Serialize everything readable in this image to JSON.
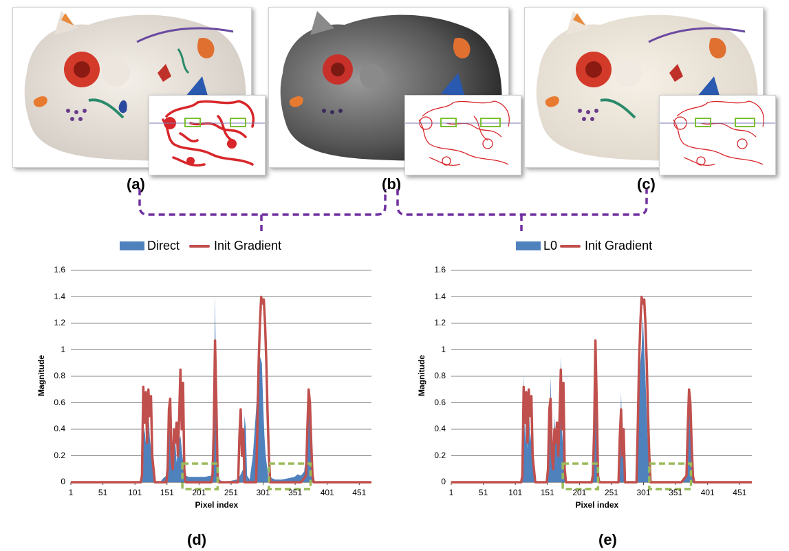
{
  "panels": {
    "a": "(a)",
    "b": "(b)",
    "c": "(c)",
    "d": "(d)",
    "e": "(e)"
  },
  "colors": {
    "bar": "#4f81bd",
    "line": "#c0504d",
    "highlight_box": "#9bbb59",
    "bracket": "#7030a0",
    "grid": "#868686"
  },
  "icons": [
    "cat-figurine-image",
    "edge-map-image"
  ],
  "chart_data": [
    {
      "type": "area",
      "legend_placement": "top",
      "xlabel": "Pixel index",
      "ylabel": "Magnitude",
      "ylim": [
        0,
        1.6
      ],
      "xlim": [
        1,
        470
      ],
      "yticks": [
        "0",
        "0.2",
        "0.4",
        "0.6",
        "0.8",
        "1",
        "1.2",
        "1.4",
        "1.6"
      ],
      "xticks": [
        "1",
        "51",
        "101",
        "151",
        "201",
        "251",
        "301",
        "351",
        "401",
        "451"
      ],
      "grid": true,
      "series": [
        {
          "name": "Direct",
          "style": "bar",
          "x": [
            1,
            110,
            112,
            114,
            116,
            118,
            120,
            122,
            124,
            126,
            128,
            130,
            132,
            140,
            145,
            150,
            152,
            155,
            158,
            160,
            163,
            166,
            169,
            172,
            175,
            178,
            180,
            185,
            190,
            200,
            210,
            220,
            224,
            226,
            228,
            230,
            232,
            240,
            250,
            260,
            265,
            270,
            272,
            274,
            276,
            280,
            285,
            290,
            293,
            296,
            299,
            301,
            303,
            305,
            307,
            309,
            312,
            315,
            320,
            330,
            340,
            350,
            355,
            360,
            365,
            370,
            372,
            374,
            376,
            378,
            380,
            390,
            470
          ],
          "y": [
            0,
            0,
            0.05,
            0.35,
            0.4,
            0.3,
            0.35,
            0.55,
            0.35,
            0.25,
            0.2,
            0.1,
            0,
            0,
            0.03,
            0.05,
            0.3,
            0.55,
            0.2,
            0.25,
            0.4,
            0.15,
            0.3,
            0.35,
            0.2,
            0.1,
            0.05,
            0.04,
            0.04,
            0.04,
            0.04,
            0.05,
            0.3,
            1.42,
            0.5,
            0.1,
            0.02,
            0,
            0.01,
            0.02,
            0.05,
            0.1,
            0.5,
            0.4,
            0.05,
            0.02,
            0.2,
            0.55,
            0.8,
            0.95,
            0.9,
            0.6,
            0.35,
            0.2,
            0.12,
            0.05,
            0.04,
            0.03,
            0.02,
            0.02,
            0.03,
            0.04,
            0.06,
            0.05,
            0.08,
            0.3,
            0.68,
            0.55,
            0.2,
            0.05,
            0,
            0,
            0
          ]
        },
        {
          "name": "Init Gradient",
          "style": "line",
          "x": [
            1,
            110,
            112,
            114,
            116,
            118,
            120,
            122,
            124,
            126,
            128,
            130,
            132,
            140,
            150,
            152,
            154,
            156,
            158,
            160,
            162,
            164,
            166,
            168,
            170,
            172,
            174,
            176,
            178,
            180,
            200,
            220,
            222,
            224,
            226,
            228,
            230,
            232,
            240,
            262,
            264,
            266,
            268,
            270,
            272,
            290,
            292,
            294,
            296,
            298,
            300,
            302,
            304,
            306,
            308,
            310,
            312,
            320,
            360,
            368,
            370,
            372,
            374,
            376,
            378,
            380,
            470
          ],
          "y": [
            0,
            0,
            0.05,
            0.72,
            0.45,
            0.68,
            0.3,
            0.7,
            0.5,
            0.65,
            0.2,
            0.1,
            0,
            0,
            0,
            0.1,
            0.55,
            0.63,
            0.2,
            0.1,
            0.4,
            0.3,
            0.45,
            0.2,
            0.5,
            0.85,
            0.4,
            0.75,
            0.1,
            0,
            0,
            0,
            0.05,
            0.4,
            1.07,
            0.6,
            0.05,
            0,
            0,
            0,
            0.35,
            0.55,
            0.2,
            0.4,
            0,
            0,
            0.4,
            0.9,
            1.2,
            1.4,
            1.35,
            1.38,
            1.2,
            0.9,
            0.5,
            0.2,
            0,
            0,
            0,
            0.05,
            0.4,
            0.7,
            0.6,
            0.3,
            0.05,
            0,
            0
          ]
        }
      ],
      "highlight_ranges": [
        [
          175,
          230
        ],
        [
          310,
          375
        ]
      ]
    },
    {
      "type": "area",
      "legend_placement": "top",
      "xlabel": "Pixel index",
      "ylabel": "Magnitude",
      "ylim": [
        0,
        1.6
      ],
      "xlim": [
        1,
        470
      ],
      "yticks": [
        "0",
        "0.2",
        "0.4",
        "0.6",
        "0.8",
        "1",
        "1.2",
        "1.4",
        "1.6"
      ],
      "xticks": [
        "1",
        "51",
        "101",
        "151",
        "201",
        "251",
        "301",
        "351",
        "401",
        "451"
      ],
      "grid": true,
      "series": [
        {
          "name": "L0",
          "style": "bar",
          "x": [
            1,
            110,
            112,
            114,
            116,
            118,
            120,
            122,
            124,
            126,
            128,
            130,
            132,
            140,
            150,
            152,
            154,
            156,
            158,
            160,
            162,
            164,
            166,
            168,
            170,
            172,
            174,
            176,
            178,
            180,
            200,
            222,
            224,
            226,
            228,
            230,
            240,
            262,
            264,
            266,
            268,
            270,
            272,
            290,
            292,
            294,
            296,
            298,
            300,
            302,
            304,
            306,
            308,
            310,
            312,
            320,
            360,
            368,
            370,
            372,
            374,
            376,
            378,
            380,
            470
          ],
          "y": [
            0,
            0,
            0.05,
            0.82,
            0.3,
            0.6,
            0.25,
            0.65,
            0.3,
            0.4,
            0.15,
            0.05,
            0,
            0,
            0,
            0.08,
            0.4,
            0.8,
            0.2,
            0.15,
            0.5,
            0.3,
            0.35,
            0.2,
            0.6,
            0.95,
            0.3,
            0.55,
            0.05,
            0,
            0,
            0,
            0.3,
            0.9,
            0.4,
            0,
            0,
            0,
            0.25,
            0.68,
            0.2,
            0.3,
            0,
            0,
            0.3,
            0.6,
            0.9,
            1.0,
            1.25,
            1.0,
            0.8,
            0.5,
            0.25,
            0.1,
            0,
            0,
            0,
            0.05,
            0.35,
            0.68,
            0.5,
            0.2,
            0.05,
            0,
            0
          ]
        },
        {
          "name": "Init Gradient",
          "style": "line",
          "x": [
            1,
            110,
            112,
            114,
            116,
            118,
            120,
            122,
            124,
            126,
            128,
            130,
            132,
            140,
            150,
            152,
            154,
            156,
            158,
            160,
            162,
            164,
            166,
            168,
            170,
            172,
            174,
            176,
            178,
            180,
            200,
            220,
            222,
            224,
            226,
            228,
            230,
            232,
            240,
            262,
            264,
            266,
            268,
            270,
            272,
            290,
            292,
            294,
            296,
            298,
            300,
            302,
            304,
            306,
            308,
            310,
            312,
            320,
            360,
            368,
            370,
            372,
            374,
            376,
            378,
            380,
            470
          ],
          "y": [
            0,
            0,
            0.05,
            0.72,
            0.45,
            0.68,
            0.3,
            0.7,
            0.5,
            0.65,
            0.2,
            0.1,
            0,
            0,
            0,
            0.1,
            0.55,
            0.63,
            0.2,
            0.1,
            0.4,
            0.3,
            0.45,
            0.2,
            0.5,
            0.85,
            0.4,
            0.75,
            0.1,
            0,
            0,
            0,
            0.05,
            0.4,
            1.07,
            0.6,
            0.05,
            0,
            0,
            0,
            0.35,
            0.55,
            0.2,
            0.4,
            0,
            0,
            0.4,
            0.9,
            1.2,
            1.4,
            1.35,
            1.38,
            1.2,
            0.9,
            0.5,
            0.2,
            0,
            0,
            0,
            0.05,
            0.4,
            0.7,
            0.6,
            0.3,
            0.05,
            0,
            0
          ]
        }
      ],
      "highlight_ranges": [
        [
          175,
          230
        ],
        [
          310,
          375
        ]
      ]
    }
  ]
}
